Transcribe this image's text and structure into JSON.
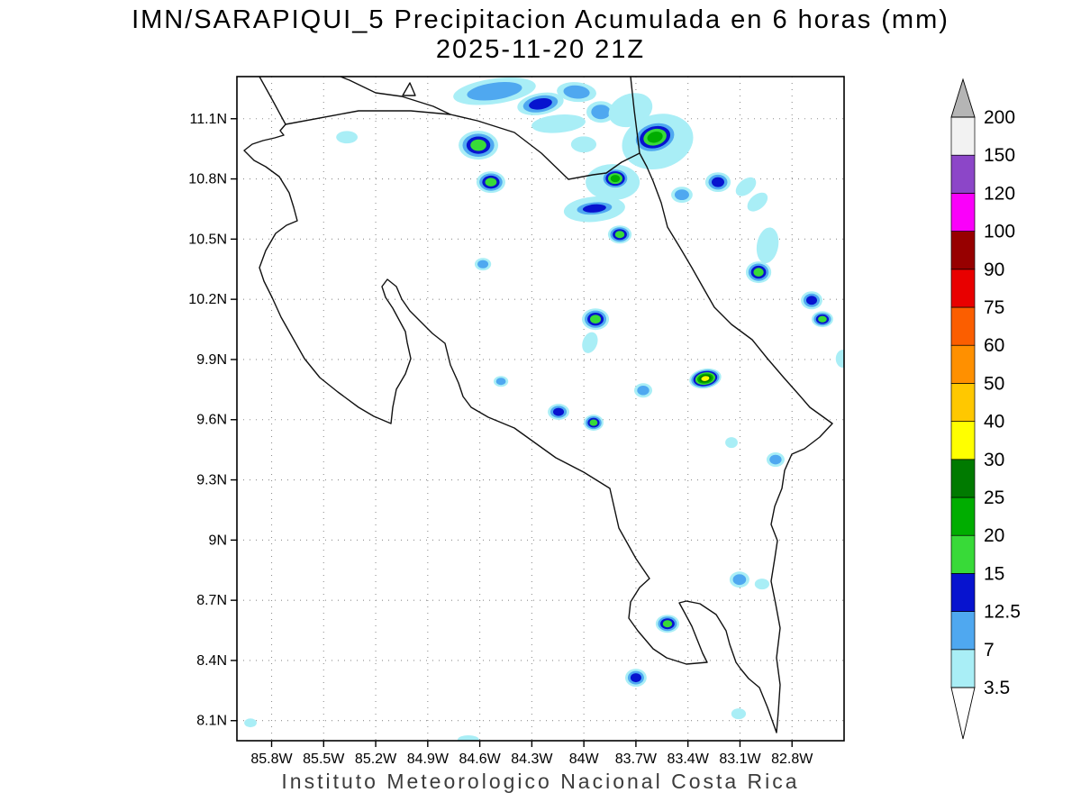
{
  "title": {
    "line1": "IMN/SARAPIQUI_5 Precipitacion Acumulada en 6 horas (mm)",
    "line2": "2025-11-20 21Z"
  },
  "footer": "Instituto Meteorologico Nacional Costa Rica",
  "chart_data": {
    "type": "heatmap",
    "title": "IMN/SARAPIQUI_5 Precipitacion Acumulada en 6 horas (mm)",
    "subtitle": "2025-11-20 21Z",
    "units": "mm",
    "region": "Costa Rica",
    "grid": true,
    "legend_position": "right",
    "lon_range": [
      -86.0,
      -82.5
    ],
    "lat_range": [
      8.0,
      11.31
    ],
    "x_tick_lons": [
      -85.8,
      -85.5,
      -85.2,
      -84.9,
      -84.6,
      -84.3,
      -84.0,
      -83.7,
      -83.4,
      -83.1,
      -82.8
    ],
    "x_tick_labels": [
      "85.8W",
      "85.5W",
      "85.2W",
      "84.9W",
      "84.6W",
      "84.3W",
      "84W",
      "83.7W",
      "83.4W",
      "83.1W",
      "82.8W"
    ],
    "y_tick_lats": [
      8.1,
      8.4,
      8.7,
      9.0,
      9.3,
      9.6,
      9.9,
      10.2,
      10.5,
      10.8,
      11.1
    ],
    "y_tick_labels": [
      "8.1N",
      "8.4N",
      "8.7N",
      "9N",
      "9.3N",
      "9.6N",
      "9.9N",
      "10.2N",
      "10.5N",
      "10.8N",
      "11.1N"
    ],
    "colorbar": {
      "boundary_labels": [
        "3.5",
        "7",
        "12.5",
        "15",
        "20",
        "25",
        "30",
        "40",
        "50",
        "60",
        "75",
        "90",
        "100",
        "120",
        "150",
        "200"
      ],
      "segment_colors_bottom_to_top": [
        "#a9eef6",
        "#4fa8f0",
        "#0713cf",
        "#38da38",
        "#00ad00",
        "#007a00",
        "#ffff00",
        "#ffc800",
        "#ff9000",
        "#fb5e00",
        "#e80000",
        "#970000",
        "#fa00fa",
        "#8c46c8",
        "#f2f2f2"
      ],
      "below_min_color": "#ffffff",
      "above_max_color": "#b5b5b5"
    },
    "intensity_levels_mm": [
      3.5,
      7,
      12.5,
      15,
      20,
      25,
      30
    ],
    "precip_cells_format": [
      "lon",
      "lat",
      "rx_deg",
      "ry_deg",
      "rotation_deg",
      "intensity_depth"
    ],
    "precip_cells": [
      [
        -84.515,
        11.237,
        0.24,
        0.063,
        -8,
        2
      ],
      [
        -84.25,
        11.174,
        0.135,
        0.054,
        -10,
        3
      ],
      [
        -84.042,
        11.233,
        0.114,
        0.049,
        5,
        2
      ],
      [
        -83.902,
        11.134,
        0.083,
        0.054,
        0,
        2
      ],
      [
        -84.146,
        11.075,
        0.156,
        0.045,
        -5,
        1
      ],
      [
        -85.366,
        11.008,
        0.062,
        0.031,
        0,
        1
      ],
      [
        -84.608,
        10.968,
        0.114,
        0.072,
        0,
        4
      ],
      [
        -84.001,
        10.972,
        0.073,
        0.04,
        0,
        1
      ],
      [
        -83.731,
        11.143,
        0.13,
        0.081,
        -20,
        1
      ],
      [
        -83.575,
        10.986,
        0.208,
        0.135,
        -15,
        1
      ],
      [
        -83.59,
        11.008,
        0.135,
        0.081,
        -15,
        5
      ],
      [
        -83.834,
        10.784,
        0.156,
        0.09,
        0,
        1
      ],
      [
        -83.819,
        10.802,
        0.083,
        0.054,
        0,
        5
      ],
      [
        -84.536,
        10.784,
        0.083,
        0.054,
        0,
        4
      ],
      [
        -83.939,
        10.649,
        0.177,
        0.063,
        -5,
        1
      ],
      [
        -83.939,
        10.653,
        0.135,
        0.04,
        -5,
        3
      ],
      [
        -83.435,
        10.721,
        0.062,
        0.04,
        0,
        2
      ],
      [
        -83.227,
        10.784,
        0.073,
        0.049,
        0,
        3
      ],
      [
        -83.066,
        10.761,
        0.068,
        0.036,
        -40,
        1
      ],
      [
        -82.999,
        10.685,
        0.068,
        0.036,
        -40,
        1
      ],
      [
        -83.793,
        10.523,
        0.068,
        0.045,
        0,
        4
      ],
      [
        -84.582,
        10.375,
        0.047,
        0.031,
        0,
        2
      ],
      [
        -82.941,
        10.469,
        0.062,
        0.09,
        10,
        1
      ],
      [
        -82.993,
        10.335,
        0.073,
        0.054,
        0,
        4
      ],
      [
        -82.687,
        10.195,
        0.062,
        0.045,
        0,
        3
      ],
      [
        -82.625,
        10.101,
        0.062,
        0.04,
        0,
        4
      ],
      [
        -83.933,
        10.101,
        0.078,
        0.054,
        0,
        4
      ],
      [
        -83.965,
        9.984,
        0.042,
        0.054,
        20,
        1
      ],
      [
        -82.506,
        9.904,
        0.042,
        0.045,
        0,
        1
      ],
      [
        -84.478,
        9.791,
        0.042,
        0.027,
        0,
        2
      ],
      [
        -84.146,
        9.639,
        0.062,
        0.04,
        0,
        3
      ],
      [
        -83.944,
        9.585,
        0.057,
        0.04,
        0,
        4
      ],
      [
        -83.658,
        9.746,
        0.052,
        0.036,
        0,
        2
      ],
      [
        -83.3,
        9.805,
        0.093,
        0.049,
        -10,
        7
      ],
      [
        -83.149,
        9.486,
        0.036,
        0.027,
        0,
        1
      ],
      [
        -82.895,
        9.401,
        0.052,
        0.036,
        0,
        2
      ],
      [
        -83.103,
        8.803,
        0.057,
        0.04,
        0,
        2
      ],
      [
        -82.973,
        8.781,
        0.042,
        0.027,
        0,
        1
      ],
      [
        -83.518,
        8.583,
        0.068,
        0.045,
        0,
        4
      ],
      [
        -83.7,
        8.314,
        0.062,
        0.045,
        0,
        3
      ],
      [
        -83.108,
        8.134,
        0.042,
        0.027,
        0,
        1
      ],
      [
        -85.922,
        8.089,
        0.036,
        0.022,
        0,
        1
      ],
      [
        -84.666,
        8.005,
        0.062,
        0.022,
        0,
        1
      ]
    ]
  }
}
